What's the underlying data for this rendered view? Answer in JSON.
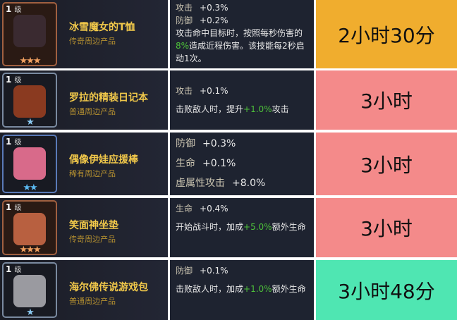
{
  "colors": {
    "orange": "#f0ad2e",
    "pink": "#f48a8a",
    "green": "#4fe6b2",
    "gold_text": "#f1c84a",
    "bonus_text": "#4ec23a"
  },
  "items": [
    {
      "level": "1",
      "level_unit": "级",
      "name": "冰雪魔女的T恤",
      "rarity": "传奇周边产品",
      "stars": "★★★",
      "stats": [
        {
          "k": "攻击",
          "v": "+0.3%"
        },
        {
          "k": "防御",
          "v": "+0.2%"
        }
      ],
      "effect": {
        "pre": "攻击命中目标时，按照每秒伤害的",
        "hl": "8%",
        "post": "造成近程伤害。该技能每2秒启动1次。"
      },
      "time": "2小时30分"
    },
    {
      "level": "1",
      "level_unit": "级",
      "name": "罗拉的精装日记本",
      "rarity": "普通周边产品",
      "stars": "★",
      "stats": [
        {
          "k": "攻击",
          "v": "+0.1%"
        }
      ],
      "effect": {
        "pre": "击败敌人时，提升",
        "hl": "+1.0%",
        "post": "攻击"
      },
      "time": "3小时"
    },
    {
      "level": "1",
      "level_unit": "级",
      "name": "偶像伊娃应援棒",
      "rarity": "稀有周边产品",
      "stars": "★★",
      "stats": [
        {
          "k": "防御",
          "v": "+0.3%"
        },
        {
          "k": "生命",
          "v": "+0.1%"
        },
        {
          "k": "虚属性攻击",
          "v": "+8.0%"
        }
      ],
      "time": "3小时"
    },
    {
      "level": "1",
      "level_unit": "级",
      "name": "笑面神坐垫",
      "rarity": "传奇周边产品",
      "stars": "★★★",
      "stats": [
        {
          "k": "生命",
          "v": "+0.4%"
        }
      ],
      "effect": {
        "pre": "开始战斗时，加成",
        "hl": "+5.0%",
        "post": "额外生命"
      },
      "time": "3小时"
    },
    {
      "level": "1",
      "level_unit": "级",
      "name": "海尔佛传说游戏包",
      "rarity": "普通周边产品",
      "stars": "★",
      "stats": [
        {
          "k": "防御",
          "v": "+0.1%"
        }
      ],
      "effect": {
        "pre": "击败敌人时，加成",
        "hl": "+1.0%",
        "post": "额外生命"
      },
      "time": "3小时48分"
    }
  ]
}
